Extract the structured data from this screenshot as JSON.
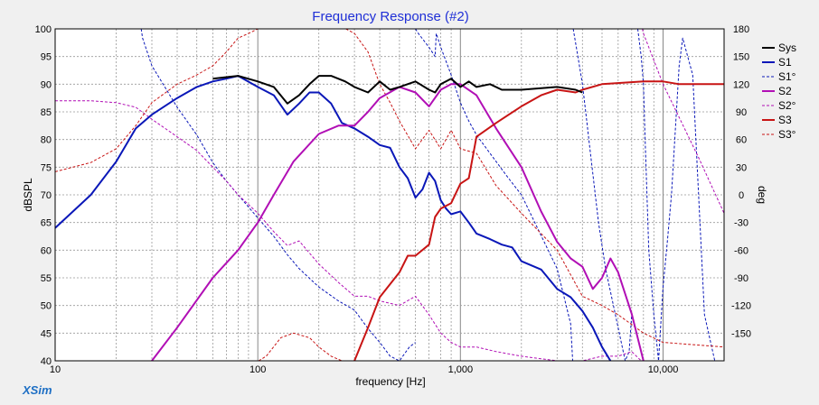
{
  "chart_data": {
    "type": "line",
    "title": "Frequency Response (#2)",
    "xlabel": "frequency [Hz]",
    "ylabel": "dBSPL",
    "y2label": "deg",
    "x_scale": "log",
    "xlim": [
      10,
      20000
    ],
    "ylim": [
      40,
      100
    ],
    "y2lim": [
      -180,
      180
    ],
    "x_ticks": [
      10,
      100,
      1000,
      10000
    ],
    "x_tick_labels": [
      "10",
      "100",
      "1,000",
      "10,000"
    ],
    "y_ticks": [
      100,
      95,
      90,
      85,
      80,
      75,
      70,
      65,
      60,
      55,
      50,
      45,
      40
    ],
    "y2_ticks": [
      180,
      150,
      120,
      90,
      60,
      30,
      0,
      -30,
      -60,
      -90,
      -120,
      -150
    ],
    "grid": true,
    "legend_position": "right",
    "brand": "XSim",
    "series": [
      {
        "name": "Sys",
        "axis": "left",
        "color": "#000000",
        "dashed": false,
        "width": 2,
        "x": [
          60,
          80,
          100,
          120,
          140,
          160,
          180,
          200,
          230,
          270,
          300,
          350,
          400,
          450,
          500,
          600,
          700,
          750,
          800,
          900,
          1000,
          1100,
          1200,
          1400,
          1600,
          2000,
          3000,
          3700,
          4000
        ],
        "y": [
          91,
          91.5,
          90.5,
          89.5,
          86.5,
          88,
          90,
          91.5,
          91.5,
          90.5,
          89.5,
          88.5,
          90.5,
          89,
          89.5,
          90.5,
          89,
          88.5,
          90,
          91,
          89.5,
          90.5,
          89.5,
          90,
          89,
          89,
          89.5,
          89,
          88.5
        ]
      },
      {
        "name": "S1",
        "axis": "left",
        "color": "#0a17b8",
        "dashed": false,
        "width": 2,
        "x": [
          10,
          15,
          20,
          25,
          30,
          40,
          50,
          60,
          70,
          80,
          100,
          120,
          140,
          160,
          180,
          200,
          230,
          260,
          300,
          350,
          400,
          450,
          500,
          550,
          600,
          650,
          700,
          750,
          800,
          850,
          900,
          1000,
          1100,
          1200,
          1400,
          1600,
          1800,
          2000,
          2500,
          3000,
          3500,
          4000,
          4500,
          5000,
          5500
        ],
        "y": [
          64,
          70,
          76,
          82,
          84.5,
          87.5,
          89.5,
          90.5,
          91,
          91.5,
          89.5,
          88,
          84.5,
          86.5,
          88.5,
          88.5,
          86.5,
          83,
          82,
          80.5,
          79,
          78.5,
          75,
          73,
          69.5,
          71,
          74,
          72.5,
          69,
          67.5,
          66.5,
          67,
          65,
          63,
          62,
          61,
          60.5,
          58,
          56.5,
          53,
          51.5,
          49,
          46,
          42.5,
          40
        ]
      },
      {
        "name": "S1°",
        "axis": "right",
        "color": "#0a17b8",
        "dashed": true,
        "width": 1,
        "x": [
          26.5,
          26.6,
          27,
          30,
          40,
          50,
          60,
          70,
          80,
          100,
          120,
          140,
          160,
          200,
          250,
          300,
          350,
          400,
          450,
          500,
          560,
          600,
          600.2,
          620,
          700,
          750,
          760,
          800,
          900,
          1000,
          1100,
          1200,
          1400,
          1700,
          2000,
          3000,
          3500,
          3580,
          3600,
          3800,
          4000,
          4200,
          4300,
          4800,
          5200,
          6500,
          6800,
          7000,
          7500,
          7800,
          8000,
          8100,
          8500,
          9000,
          9500,
          10000,
          10500,
          11000,
          12000,
          12500,
          14000,
          16000,
          18000
        ],
        "y": [
          -180,
          180,
          170,
          140,
          95,
          65,
          35,
          15,
          0,
          -25,
          -45,
          -65,
          -80,
          -100,
          -115,
          -125,
          -145,
          -160,
          -175,
          -180,
          -165,
          -160,
          180,
          175,
          160,
          150,
          175,
          160,
          130,
          100,
          80,
          65,
          45,
          20,
          0,
          -80,
          -140,
          -180,
          180,
          150,
          120,
          80,
          60,
          -30,
          -80,
          -180,
          -170,
          -130,
          180,
          150,
          120,
          80,
          -60,
          -130,
          -180,
          -100,
          -50,
          0,
          140,
          170,
          130,
          -130,
          -180
        ]
      },
      {
        "name": "S2",
        "axis": "left",
        "color": "#b10fb5",
        "dashed": false,
        "width": 2,
        "x": [
          30,
          40,
          60,
          80,
          100,
          120,
          150,
          200,
          250,
          300,
          350,
          400,
          500,
          600,
          700,
          800,
          900,
          1000,
          1200,
          1500,
          2000,
          2500,
          3000,
          3500,
          4000,
          4500,
          5000,
          5500,
          6000,
          7000,
          8000
        ],
        "y": [
          40,
          46,
          55,
          60,
          65,
          70,
          76,
          81,
          82.5,
          82.5,
          85,
          87.5,
          89.5,
          88.5,
          86,
          89,
          90,
          90,
          88,
          82,
          75,
          67,
          61.5,
          58.5,
          57,
          53,
          55,
          58.5,
          56,
          48.5,
          40
        ]
      },
      {
        "name": "S2°",
        "axis": "right",
        "color": "#b10fb5",
        "dashed": true,
        "width": 1,
        "x": [
          10,
          15,
          20,
          25,
          30,
          40,
          50,
          60,
          70,
          80,
          100,
          120,
          140,
          160,
          200,
          250,
          300,
          350,
          400,
          500,
          600,
          700,
          800,
          900,
          1000,
          1200,
          1500,
          2000,
          3000,
          4000,
          5000,
          6000,
          7000,
          7800,
          7900,
          8000,
          10000,
          15000,
          20000
        ],
        "y": [
          102,
          102,
          100,
          95,
          82,
          63,
          48,
          30,
          15,
          0,
          -20,
          -40,
          -55,
          -50,
          -75,
          -95,
          -110,
          -110,
          -115,
          -120,
          -110,
          -130,
          -150,
          -160,
          -165,
          -165,
          -170,
          -175,
          -180,
          -180,
          -175,
          -175,
          -170,
          -180,
          180,
          175,
          120,
          40,
          -20
        ]
      },
      {
        "name": "S3",
        "axis": "left",
        "color": "#c81414",
        "dashed": false,
        "width": 2,
        "x": [
          300,
          350,
          400,
          500,
          550,
          600,
          700,
          750,
          800,
          900,
          1000,
          1100,
          1200,
          1500,
          2000,
          2500,
          3000,
          3700,
          4000,
          5000,
          8000,
          10000,
          12000,
          20000
        ],
        "y": [
          40,
          46,
          51.5,
          56,
          59,
          59,
          61,
          66,
          67.5,
          68.5,
          72,
          73,
          80.5,
          83,
          86,
          88,
          89,
          88.5,
          89,
          90,
          90.5,
          90.5,
          90,
          90
        ]
      },
      {
        "name": "S3°",
        "axis": "right",
        "color": "#c81414",
        "dashed": true,
        "width": 1,
        "x": [
          10,
          15,
          20,
          25,
          30,
          40,
          50,
          60,
          70,
          80,
          90,
          100,
          101,
          110,
          130,
          150,
          180,
          200,
          230,
          260,
          270,
          272,
          300,
          350,
          400,
          450,
          500,
          600,
          700,
          800,
          900,
          1000,
          1200,
          1500,
          2000,
          3000,
          4000,
          5000,
          6000,
          8000,
          10000,
          20000
        ],
        "y": [
          25,
          35,
          50,
          75,
          100,
          120,
          130,
          140,
          155,
          170,
          175,
          180,
          -180,
          -175,
          -155,
          -150,
          -155,
          -165,
          -175,
          -180,
          -180,
          180,
          175,
          155,
          120,
          100,
          80,
          50,
          70,
          50,
          70,
          50,
          45,
          10,
          -20,
          -60,
          -110,
          -120,
          -130,
          -150,
          -160,
          -165
        ]
      }
    ]
  }
}
